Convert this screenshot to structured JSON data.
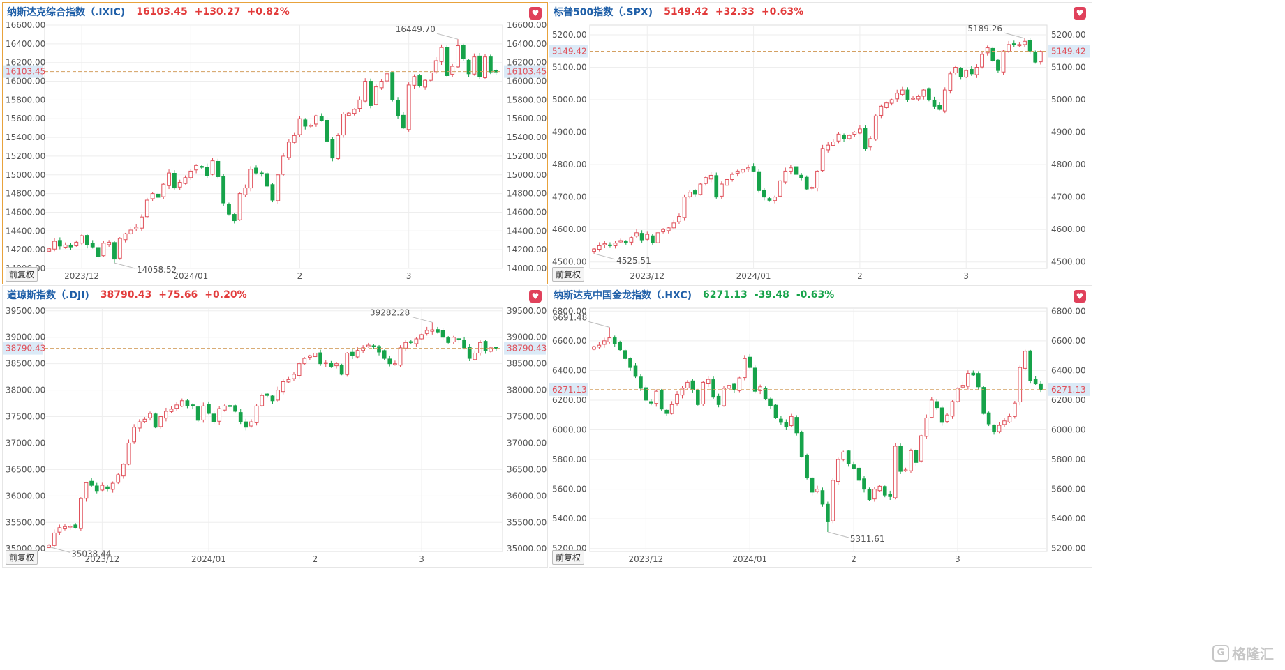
{
  "colors": {
    "up": "#e0505a",
    "down": "#16a34a",
    "grid": "#eeeeee",
    "axis_text": "#555555",
    "ref_line": "#d4a062",
    "ref_bg": "#dbeaf7",
    "ref_text": "#e0505a"
  },
  "common": {
    "adj_button": "前复权",
    "fav_icon": "heart-icon",
    "x_labels": [
      "2023/12",
      "2024/01",
      "2",
      "3"
    ]
  },
  "watermark": {
    "icon": "logo-icon",
    "text": "格隆汇"
  },
  "panels": [
    {
      "title": "纳斯达克综合指数（.IXIC)",
      "price": "16103.45",
      "change": "+130.27",
      "pct": "+0.82%",
      "direction": "up",
      "active": true,
      "current_label": "16103.45",
      "high_label": "16449.70",
      "low_label": "14058.52"
    },
    {
      "title": "标普500指数（.SPX)",
      "price": "5149.42",
      "change": "+32.33",
      "pct": "+0.63%",
      "direction": "up",
      "active": false,
      "current_label": "5149.42",
      "high_label": "5189.26",
      "low_label": "4525.51"
    },
    {
      "title": "道琼斯指数（.DJI)",
      "price": "38790.43",
      "change": "+75.66",
      "pct": "+0.20%",
      "direction": "up",
      "active": false,
      "current_label": "38790.43",
      "high_label": "39282.28",
      "low_label": "35038.44"
    },
    {
      "title": "纳斯达克中国金龙指数（.HXC)",
      "price": "6271.13",
      "change": "-39.48",
      "pct": "-0.63%",
      "direction": "down",
      "active": false,
      "current_label": "6271.13",
      "high_label": "6691.48",
      "low_label": "5311.61"
    }
  ],
  "chart_data": [
    {
      "type": "candlestick",
      "title": "纳斯达克综合指数（.IXIC)",
      "ylim": [
        14000,
        16600
      ],
      "yticks": [
        "14000.00",
        "14200.00",
        "14400.00",
        "14600.00",
        "14800.00",
        "15000.00",
        "15200.00",
        "15400.00",
        "15600.00",
        "15800.00",
        "16000.00",
        "16200.00",
        "16400.00",
        "16600.00"
      ],
      "current": 16103.45,
      "high": 16449.7,
      "low": 14058.52,
      "month_breaks": {
        "2023/12": 6,
        "2024/01": 26,
        "2": 46,
        "3": 66
      },
      "closes": [
        14210,
        14290,
        14240,
        14250,
        14230,
        14280,
        14350,
        14250,
        14230,
        14130,
        14270,
        14280,
        14100,
        14320,
        14370,
        14410,
        14440,
        14550,
        14730,
        14800,
        14760,
        14900,
        15020,
        14860,
        14920,
        14970,
        15040,
        15100,
        15080,
        14990,
        15150,
        14980,
        14700,
        14580,
        14510,
        14800,
        14860,
        15060,
        15020,
        15010,
        14880,
        14730,
        15000,
        15200,
        15350,
        15420,
        15600,
        15520,
        15530,
        15630,
        15580,
        15360,
        15180,
        15420,
        15650,
        15660,
        15700,
        15800,
        16000,
        15740,
        15940,
        16000,
        16080,
        15800,
        15630,
        15500,
        15960,
        16050,
        15950,
        16010,
        16090,
        16220,
        16360,
        16060,
        16160,
        16380,
        16240,
        16080,
        16260,
        16050,
        16260,
        16100,
        16100
      ]
    },
    {
      "type": "candlestick",
      "title": "标普500指数（.SPX)",
      "ylim": [
        4480,
        5230
      ],
      "yticks": [
        "4500.00",
        "4600.00",
        "4700.00",
        "4800.00",
        "4900.00",
        "5000.00",
        "5100.00",
        "5200.00"
      ],
      "current": 5149.42,
      "high": 5189.26,
      "low": 4525.51,
      "month_breaks": {
        "2023/12": 10,
        "2024/01": 30,
        "2": 50,
        "3": 70
      },
      "closes": [
        4540,
        4550,
        4556,
        4550,
        4558,
        4566,
        4560,
        4575,
        4590,
        4568,
        4585,
        4560,
        4590,
        4600,
        4605,
        4620,
        4640,
        4700,
        4715,
        4710,
        4740,
        4760,
        4767,
        4700,
        4740,
        4754,
        4770,
        4780,
        4785,
        4790,
        4780,
        4720,
        4700,
        4690,
        4700,
        4750,
        4780,
        4790,
        4770,
        4760,
        4725,
        4730,
        4780,
        4850,
        4860,
        4870,
        4894,
        4880,
        4890,
        4900,
        4910,
        4850,
        4880,
        4950,
        4980,
        4990,
        5000,
        5020,
        5030,
        5000,
        5005,
        5010,
        5030,
        5000,
        4980,
        4970,
        5030,
        5080,
        5100,
        5070,
        5090,
        5080,
        5100,
        5140,
        5160,
        5120,
        5090,
        5150,
        5170,
        5170,
        5170,
        5180,
        5150,
        5116,
        5149
      ]
    },
    {
      "type": "candlestick",
      "title": "道琼斯指数（.DJI)",
      "ylim": [
        34950,
        39550
      ],
      "yticks": [
        "35000.00",
        "35500.00",
        "36000.00",
        "36500.00",
        "37000.00",
        "37500.00",
        "38000.00",
        "38500.00",
        "39000.00",
        "39500.00"
      ],
      "current": 38790.43,
      "high": 39282.28,
      "low": 35038.44,
      "month_breaks": {
        "2023/12": 10,
        "2024/01": 30,
        "2": 50,
        "3": 70
      },
      "closes": [
        35070,
        35300,
        35400,
        35420,
        35430,
        35400,
        35950,
        36250,
        36200,
        36100,
        36200,
        36130,
        36240,
        36400,
        36600,
        37000,
        37300,
        37400,
        37450,
        37560,
        37300,
        37500,
        37600,
        37640,
        37720,
        37800,
        37700,
        37700,
        37430,
        37700,
        37560,
        37400,
        37650,
        37700,
        37690,
        37600,
        37400,
        37300,
        37400,
        37700,
        37900,
        37900,
        37800,
        38000,
        38160,
        38200,
        38300,
        38500,
        38600,
        38650,
        38700,
        38500,
        38520,
        38450,
        38500,
        38300,
        38700,
        38650,
        38750,
        38800,
        38850,
        38820,
        38720,
        38600,
        38500,
        38500,
        38800,
        38900,
        38900,
        38970,
        39050,
        39130,
        39140,
        39100,
        39000,
        38900,
        39000,
        38950,
        38800,
        38600,
        38700,
        38900,
        38750,
        38800,
        38790
      ]
    },
    {
      "type": "candlestick",
      "title": "纳斯达克中国金龙指数（.HXC)",
      "ylim": [
        5180,
        6820
      ],
      "yticks": [
        "5200.00",
        "5400.00",
        "5600.00",
        "5800.00",
        "6000.00",
        "6200.00",
        "6400.00",
        "6600.00",
        "6800.00"
      ],
      "current": 6271.13,
      "high": 6691.48,
      "low": 5311.61,
      "month_breaks": {
        "2023/12": 10,
        "2024/01": 30,
        "2": 50,
        "3": 70
      },
      "closes": [
        6560,
        6570,
        6600,
        6620,
        6580,
        6540,
        6480,
        6420,
        6360,
        6280,
        6200,
        6180,
        6260,
        6140,
        6110,
        6170,
        6240,
        6280,
        6320,
        6270,
        6170,
        6320,
        6340,
        6220,
        6170,
        6280,
        6300,
        6270,
        6350,
        6480,
        6420,
        6260,
        6290,
        6210,
        6160,
        6080,
        6050,
        6020,
        6090,
        5980,
        5820,
        5680,
        5580,
        5600,
        5500,
        5380,
        5660,
        5800,
        5850,
        5770,
        5740,
        5660,
        5600,
        5530,
        5600,
        5620,
        5560,
        5550,
        5890,
        5720,
        5730,
        5860,
        5780,
        5960,
        6080,
        6200,
        6150,
        6050,
        6100,
        6190,
        6280,
        6300,
        6380,
        6370,
        6290,
        6110,
        6040,
        5990,
        6030,
        6060,
        6090,
        6180,
        6420,
        6530,
        6330,
        6310,
        6270
      ]
    }
  ]
}
